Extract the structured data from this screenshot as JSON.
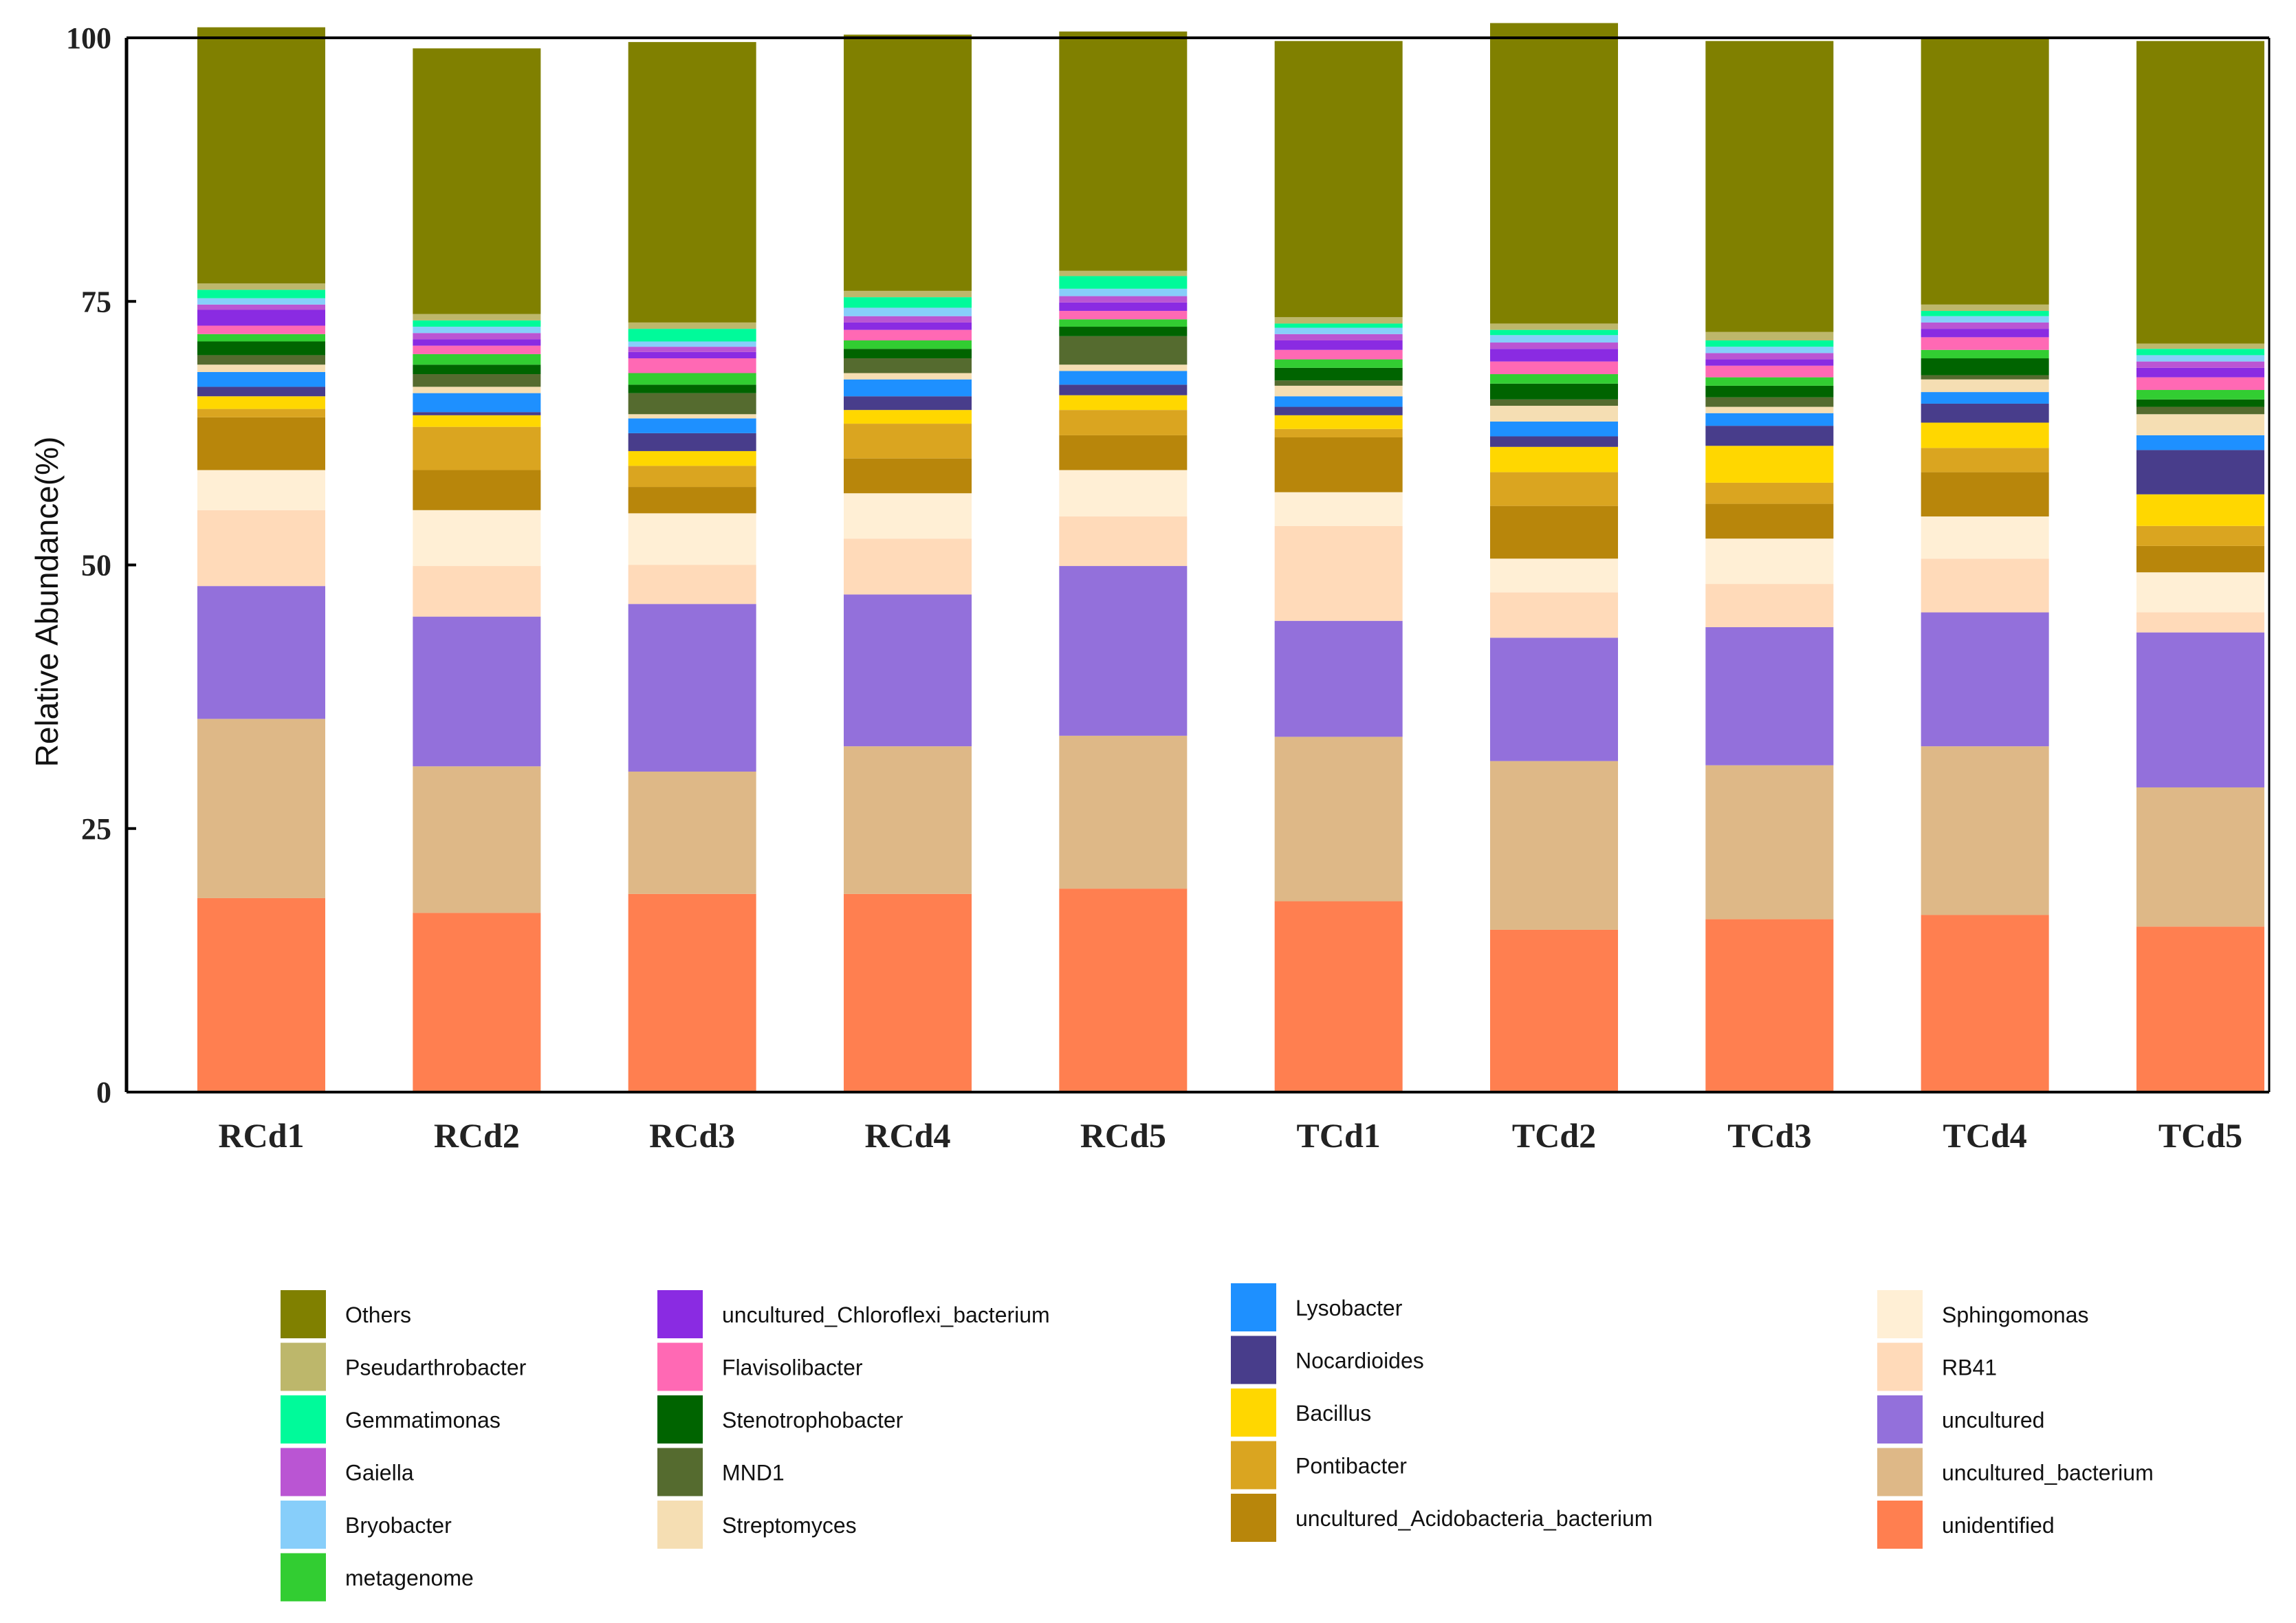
{
  "chart_data": {
    "type": "bar",
    "stacked": true,
    "title": "",
    "xlabel": "",
    "ylabel": "Relative Abundance(%)",
    "ylim": [
      0,
      100
    ],
    "yticks": [
      0,
      25,
      50,
      75,
      100
    ],
    "grid": false,
    "categories": [
      "RCd1",
      "RCd2",
      "RCd3",
      "RCd4",
      "RCd5",
      "TCd1",
      "TCd2",
      "TCd3",
      "TCd4",
      "TCd5"
    ],
    "series": [
      {
        "name": "unidentified",
        "color": "#FF7F50",
        "values": [
          18.4,
          17.0,
          18.8,
          18.8,
          19.3,
          18.1,
          15.4,
          16.4,
          16.8,
          15.7
        ]
      },
      {
        "name": "uncultured_bacterium",
        "color": "#DEB887",
        "values": [
          17.0,
          13.9,
          11.6,
          14.0,
          14.5,
          15.6,
          16.0,
          14.6,
          16.0,
          13.2
        ]
      },
      {
        "name": "uncultured",
        "color": "#9370DB",
        "values": [
          12.6,
          14.2,
          15.9,
          14.4,
          16.1,
          11.0,
          11.7,
          13.1,
          12.7,
          14.7
        ]
      },
      {
        "name": "RB41",
        "color": "#FFDAB9",
        "values": [
          7.2,
          4.8,
          3.7,
          5.3,
          4.7,
          9.0,
          4.3,
          4.1,
          5.1,
          1.9
        ]
      },
      {
        "name": "Sphingomonas",
        "color": "#FFEFD5",
        "values": [
          3.8,
          5.3,
          4.9,
          4.3,
          4.4,
          3.2,
          3.2,
          4.3,
          4.0,
          3.8
        ]
      },
      {
        "name": "uncultured_Acidobacteria_bacterium",
        "color": "#B8860B",
        "values": [
          5.0,
          3.8,
          2.5,
          3.3,
          3.3,
          5.2,
          5.0,
          3.3,
          4.2,
          2.5
        ]
      },
      {
        "name": "Pontibacter",
        "color": "#DAA520",
        "values": [
          0.8,
          4.1,
          2.0,
          3.3,
          2.4,
          0.8,
          3.2,
          2.0,
          2.3,
          1.9
        ]
      },
      {
        "name": "Bacillus",
        "color": "#FFD700",
        "values": [
          1.2,
          1.1,
          1.4,
          1.3,
          1.4,
          1.3,
          2.4,
          3.5,
          2.4,
          3.0
        ]
      },
      {
        "name": "Nocardioides",
        "color": "#483D8B",
        "values": [
          0.9,
          0.3,
          1.7,
          1.3,
          1.0,
          0.8,
          1.0,
          1.9,
          1.8,
          4.2
        ]
      },
      {
        "name": "Lysobacter",
        "color": "#1E90FF",
        "values": [
          1.4,
          1.8,
          1.4,
          1.6,
          1.3,
          1.0,
          1.4,
          1.2,
          1.1,
          1.4
        ]
      },
      {
        "name": "Streptomyces",
        "color": "#F5DEB3",
        "values": [
          0.7,
          0.6,
          0.4,
          0.6,
          0.6,
          1.0,
          1.5,
          0.6,
          1.2,
          2.0
        ]
      },
      {
        "name": "MND1",
        "color": "#556B2F",
        "values": [
          0.9,
          1.2,
          2.0,
          1.4,
          2.7,
          0.5,
          0.6,
          0.9,
          0.4,
          0.7
        ]
      },
      {
        "name": "Stenotrophobacter",
        "color": "#006400",
        "values": [
          1.3,
          0.9,
          0.8,
          0.9,
          0.9,
          1.2,
          1.5,
          1.1,
          1.6,
          0.7
        ]
      },
      {
        "name": "metagenome",
        "color": "#32CD32",
        "values": [
          0.7,
          1.0,
          1.1,
          0.8,
          0.7,
          0.8,
          0.9,
          0.8,
          0.8,
          0.9
        ]
      },
      {
        "name": "Flavisolibacter",
        "color": "#FF69B4",
        "values": [
          0.8,
          0.8,
          1.4,
          1.0,
          0.8,
          0.9,
          1.2,
          1.1,
          1.2,
          1.2
        ]
      },
      {
        "name": "uncultured_Chloroflexi_bacterium",
        "color": "#8A2BE2",
        "values": [
          1.5,
          0.6,
          0.6,
          0.7,
          0.8,
          0.9,
          1.2,
          0.6,
          0.8,
          0.9
        ]
      },
      {
        "name": "Gaiella",
        "color": "#BA55D3",
        "values": [
          0.5,
          0.6,
          0.5,
          0.6,
          0.6,
          0.6,
          0.6,
          0.6,
          0.6,
          0.6
        ]
      },
      {
        "name": "Bryobacter",
        "color": "#87CEFA",
        "values": [
          0.6,
          0.6,
          0.5,
          0.8,
          0.7,
          0.6,
          0.7,
          0.6,
          0.6,
          0.6
        ]
      },
      {
        "name": "Gemmatimonas",
        "color": "#00FA9A",
        "values": [
          0.8,
          0.6,
          1.2,
          1.0,
          1.2,
          0.4,
          0.5,
          0.6,
          0.5,
          0.6
        ]
      },
      {
        "name": "Pseudarthrobacter",
        "color": "#BDB76B",
        "values": [
          0.6,
          0.6,
          0.6,
          0.6,
          0.5,
          0.6,
          0.6,
          0.8,
          0.6,
          0.5
        ]
      },
      {
        "name": "Others",
        "color": "#808000",
        "values": [
          24.3,
          25.2,
          26.6,
          24.3,
          22.7,
          26.2,
          28.5,
          27.6,
          25.4,
          28.7
        ]
      }
    ],
    "legend": {
      "placement": "bottom",
      "columns": [
        [
          "Others",
          "Pseudarthrobacter",
          "Gemmatimonas",
          "Gaiella",
          "Bryobacter",
          "metagenome"
        ],
        [
          "uncultured_Chloroflexi_bacterium",
          "Flavisolibacter",
          "Stenotrophobacter",
          "MND1",
          "Streptomyces"
        ],
        [
          "Lysobacter",
          "Nocardioides",
          "Bacillus",
          "Pontibacter",
          "uncultured_Acidobacteria_bacterium"
        ],
        [
          "Sphingomonas",
          "RB41",
          "uncultured",
          "uncultured_bacterium",
          "unidentified"
        ]
      ]
    }
  }
}
